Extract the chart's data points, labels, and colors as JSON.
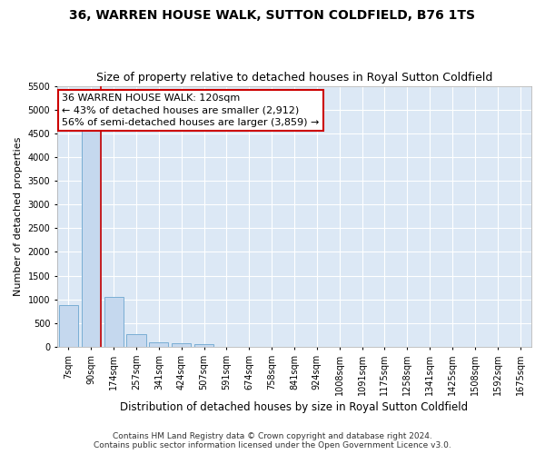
{
  "title": "36, WARREN HOUSE WALK, SUTTON COLDFIELD, B76 1TS",
  "subtitle": "Size of property relative to detached houses in Royal Sutton Coldfield",
  "xlabel": "Distribution of detached houses by size in Royal Sutton Coldfield",
  "ylabel": "Number of detached properties",
  "footer_line1": "Contains HM Land Registry data © Crown copyright and database right 2024.",
  "footer_line2": "Contains public sector information licensed under the Open Government Licence v3.0.",
  "bar_labels": [
    "7sqm",
    "90sqm",
    "174sqm",
    "257sqm",
    "341sqm",
    "424sqm",
    "507sqm",
    "591sqm",
    "674sqm",
    "758sqm",
    "841sqm",
    "924sqm",
    "1008sqm",
    "1091sqm",
    "1175sqm",
    "1258sqm",
    "1341sqm",
    "1425sqm",
    "1508sqm",
    "1592sqm",
    "1675sqm"
  ],
  "bar_values": [
    880,
    4550,
    1060,
    275,
    90,
    80,
    55,
    0,
    0,
    0,
    0,
    0,
    0,
    0,
    0,
    0,
    0,
    0,
    0,
    0,
    0
  ],
  "bar_color": "#c5d8ee",
  "bar_edge_color": "#7aaed4",
  "red_line_x": 1.43,
  "annotation_text": "36 WARREN HOUSE WALK: 120sqm\n← 43% of detached houses are smaller (2,912)\n56% of semi-detached houses are larger (3,859) →",
  "annotation_box_color": "#ffffff",
  "annotation_border_color": "#cc0000",
  "ylim": [
    0,
    5500
  ],
  "yticks": [
    0,
    500,
    1000,
    1500,
    2000,
    2500,
    3000,
    3500,
    4000,
    4500,
    5000,
    5500
  ],
  "background_color": "#ffffff",
  "plot_background": "#dce8f5",
  "grid_color": "#ffffff",
  "title_fontsize": 10,
  "subtitle_fontsize": 9,
  "xlabel_fontsize": 8.5,
  "ylabel_fontsize": 8,
  "tick_fontsize": 7,
  "annotation_fontsize": 8,
  "footer_fontsize": 6.5
}
